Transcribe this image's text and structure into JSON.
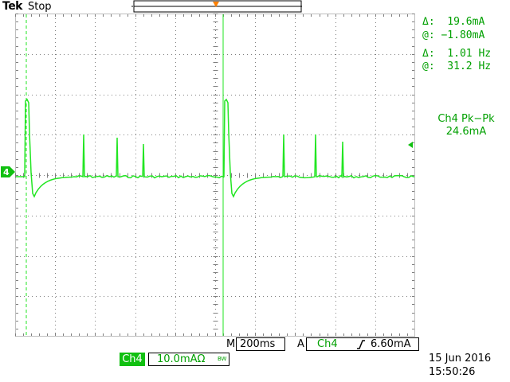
{
  "header": {
    "brand": "Tek",
    "run_state": "Stop"
  },
  "cursors": {
    "amplitude_delta": "Δ:  19.6mA",
    "amplitude_at": "@: −1.80mA",
    "time_delta": "Δ:  1.01 Hz",
    "time_at": "@:  31.2 Hz"
  },
  "measurement": {
    "title": "Ch4 Pk−Pk",
    "value": "24.6mA"
  },
  "channel": {
    "marker": "4",
    "label": "Ch4",
    "scale": "10.0mAΩ",
    "bw_symbol": "BW"
  },
  "timebase": {
    "mode": "M",
    "value": "200ms"
  },
  "trigger": {
    "mode": "A",
    "source": "Ch4",
    "slope_icon": "rising-edge-icon",
    "level": "6.60mA"
  },
  "datetime": {
    "date": "15 Jun  2016",
    "time": "15:50:26"
  },
  "colors": {
    "trace": "#22e622",
    "grid": "#7f7f7f",
    "readout": "#00a000",
    "trigger_marker": "#ff8000",
    "channel_tag": "#11c011"
  }
}
